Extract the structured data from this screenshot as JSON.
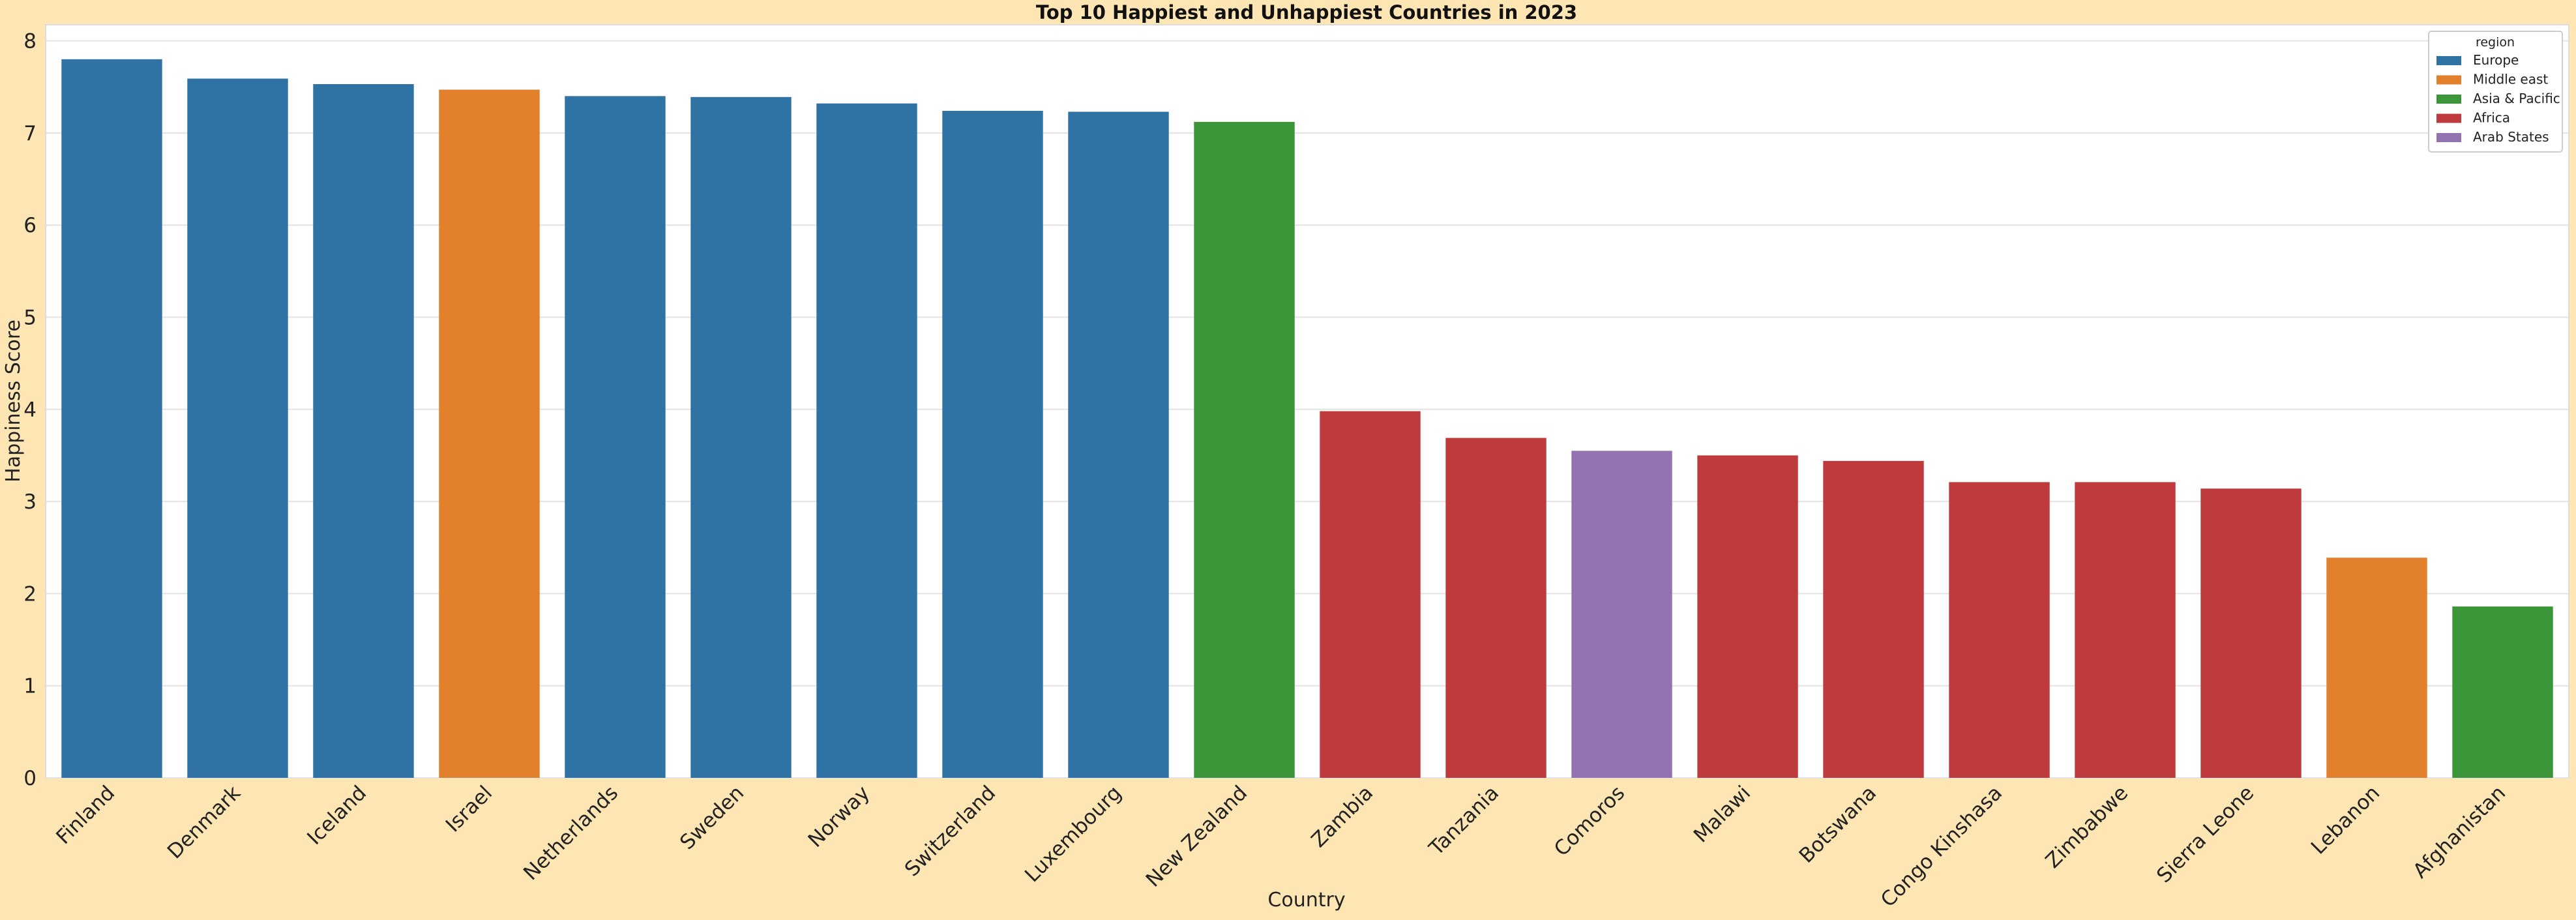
{
  "chart_data": {
    "type": "bar",
    "title": "Top 10 Happiest and Unhappiest Countries in 2023",
    "xlabel": "Country",
    "ylabel": "Happiness Score",
    "ylim": [
      0,
      8.2
    ],
    "yticks": [
      0,
      1,
      2,
      3,
      4,
      5,
      6,
      7,
      8
    ],
    "grid": true,
    "legend_placement": "top-right",
    "legend_title": "region",
    "regions": [
      {
        "name": "Europe",
        "color": "#2e73a3"
      },
      {
        "name": "Middle east",
        "color": "#e2802c"
      },
      {
        "name": "Asia & Pacific",
        "color": "#3b9539"
      },
      {
        "name": "Africa",
        "color": "#bf3a3c"
      },
      {
        "name": "Arab States",
        "color": "#9372b0"
      }
    ],
    "categories": [
      "Finland",
      "Denmark",
      "Iceland",
      "Israel",
      "Netherlands",
      "Sweden",
      "Norway",
      "Switzerland",
      "Luxembourg",
      "New Zealand",
      "Zambia",
      "Tanzania",
      "Comoros",
      "Malawi",
      "Botswana",
      "Congo Kinshasa",
      "Zimbabwe",
      "Sierra Leone",
      "Lebanon",
      "Afghanistan"
    ],
    "values": [
      7.8,
      7.59,
      7.53,
      7.47,
      7.4,
      7.39,
      7.32,
      7.24,
      7.23,
      7.12,
      3.98,
      3.69,
      3.55,
      3.5,
      3.44,
      3.21,
      3.21,
      3.14,
      2.39,
      1.86
    ],
    "bar_regions": [
      "Europe",
      "Europe",
      "Europe",
      "Middle east",
      "Europe",
      "Europe",
      "Europe",
      "Europe",
      "Europe",
      "Asia & Pacific",
      "Africa",
      "Africa",
      "Arab States",
      "Africa",
      "Africa",
      "Africa",
      "Africa",
      "Africa",
      "Middle east",
      "Asia & Pacific"
    ]
  }
}
